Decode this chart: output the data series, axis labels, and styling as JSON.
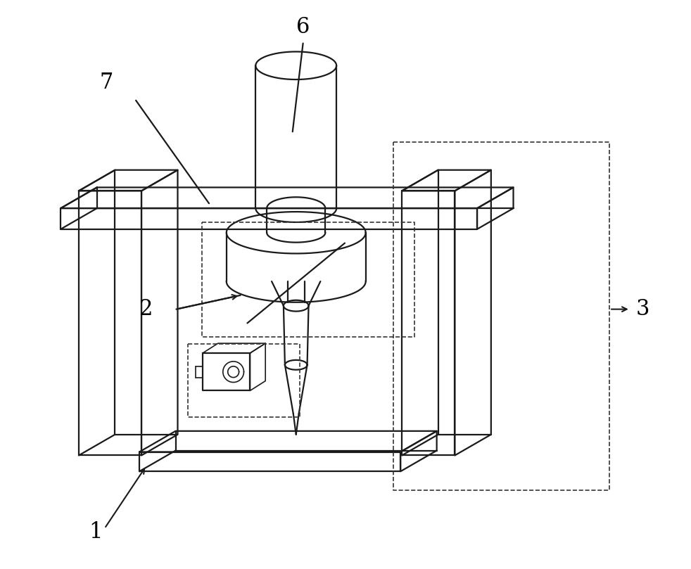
{
  "bg_color": "#ffffff",
  "line_color": "#1a1a1a",
  "dash_color": "#333333",
  "label_color": "#000000",
  "label_fontsize": 22,
  "figsize": [
    9.82,
    8.09
  ],
  "dpi": 100,
  "lw_main": 1.6,
  "lw_thin": 1.2,
  "lw_label": 1.5
}
